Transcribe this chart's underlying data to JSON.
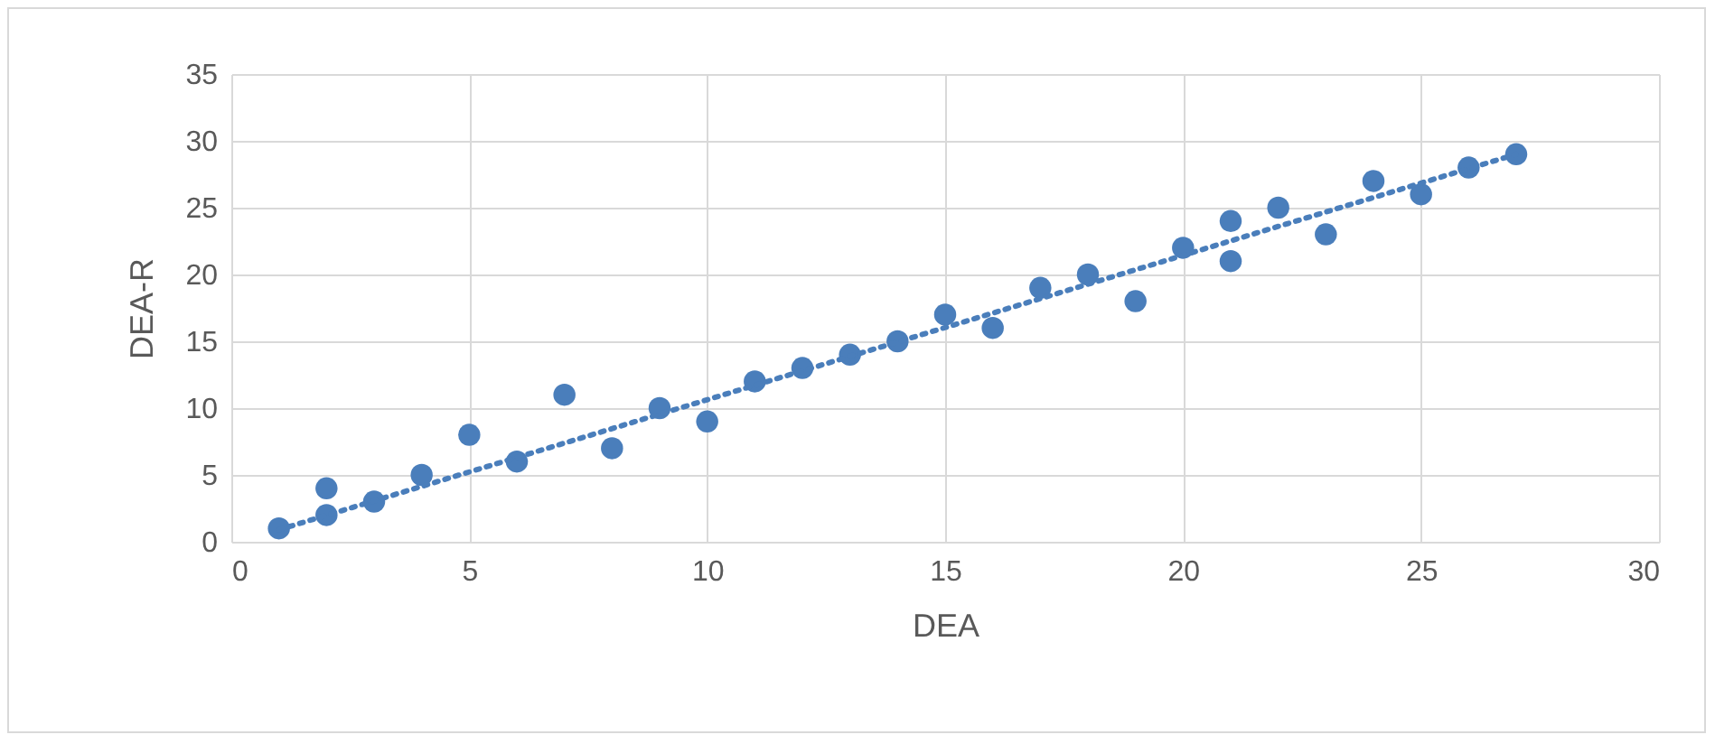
{
  "chart_data": {
    "type": "scatter",
    "xlabel": "DEA",
    "ylabel": "DEA-R",
    "xlim": [
      0,
      30
    ],
    "ylim": [
      0,
      35
    ],
    "xticks": [
      0,
      5,
      10,
      15,
      20,
      25,
      30
    ],
    "yticks": [
      0,
      5,
      10,
      15,
      20,
      25,
      30,
      35
    ],
    "grid": true,
    "series": [
      {
        "type": "scatter",
        "marker": "circle",
        "color": "#4a7ebb",
        "x": [
          1,
          2,
          2,
          3,
          4,
          5,
          6,
          7,
          8,
          9,
          10,
          11,
          12,
          13,
          14,
          15,
          16,
          17,
          18,
          19,
          20,
          21,
          21,
          22,
          23,
          24,
          25,
          26,
          27
        ],
        "values": [
          1,
          4,
          2,
          3,
          5,
          8,
          6,
          11,
          7,
          10,
          9,
          12,
          13,
          14,
          15,
          17,
          16,
          19,
          20,
          18,
          22,
          24,
          21,
          25,
          23,
          27,
          26,
          28,
          29
        ]
      },
      {
        "type": "line",
        "color": "#4a7ebb",
        "line_style": "dotted",
        "marker": "none",
        "x": [
          1,
          27
        ],
        "values": [
          0.9,
          29
        ]
      }
    ]
  }
}
